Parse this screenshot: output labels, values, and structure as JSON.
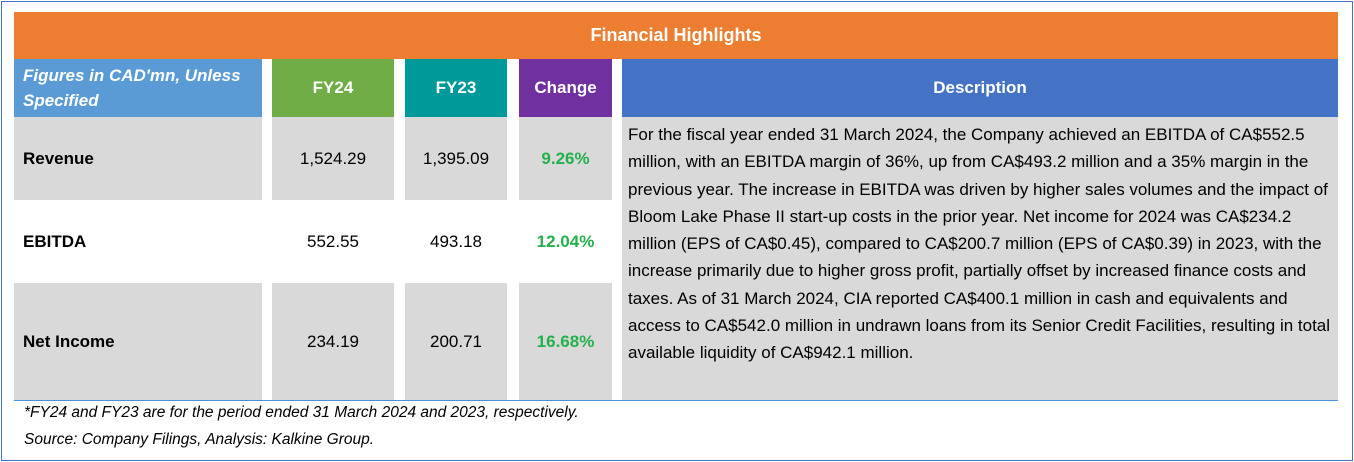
{
  "title": "Financial Highlights",
  "headers": {
    "label": "Figures in CAD'mn, Unless Specified",
    "fy24": "FY24",
    "fy23": "FY23",
    "change": "Change",
    "description": "Description"
  },
  "rows": [
    {
      "label": "Revenue",
      "fy24": "1,524.29",
      "fy23": "1,395.09",
      "change": "9.26%"
    },
    {
      "label": "EBITDA",
      "fy24": "552.55",
      "fy23": "493.18",
      "change": "12.04%"
    },
    {
      "label": "Net Income",
      "fy24": "234.19",
      "fy23": "200.71",
      "change": "16.68%"
    }
  ],
  "description": "For the fiscal year ended 31 March 2024, the Company achieved an EBITDA of CA$552.5 million, with an EBITDA margin of 36%, up from CA$493.2 million and a 35% margin in the previous year. The increase in EBITDA was driven by higher sales volumes and the impact of Bloom Lake Phase II start-up costs in the prior year. Net income for 2024 was CA$234.2 million (EPS of CA$0.45), compared to CA$200.7 million (EPS of CA$0.39) in 2023, with the increase primarily due to higher gross profit, partially offset by increased finance costs and taxes. As of 31 March 2024, CIA reported CA$400.1 million in cash and equivalents and access to CA$542.0 million in undrawn loans from its Senior Credit Facilities, resulting in total available liquidity of CA$942.1 million.",
  "footnotes": {
    "period": "*FY24 and FY23 are for the period ended 31 March 2024 and 2023, respectively.",
    "source": "Source: Company Filings, Analysis: Kalkine Group."
  },
  "colors": {
    "banner": "#ed7d31",
    "label_header": "#5b9bd5",
    "fy24_header": "#70ad47",
    "fy23_header": "#009999",
    "change_header": "#7030a0",
    "description_header": "#4472c4",
    "change_text": "#22b14c"
  }
}
